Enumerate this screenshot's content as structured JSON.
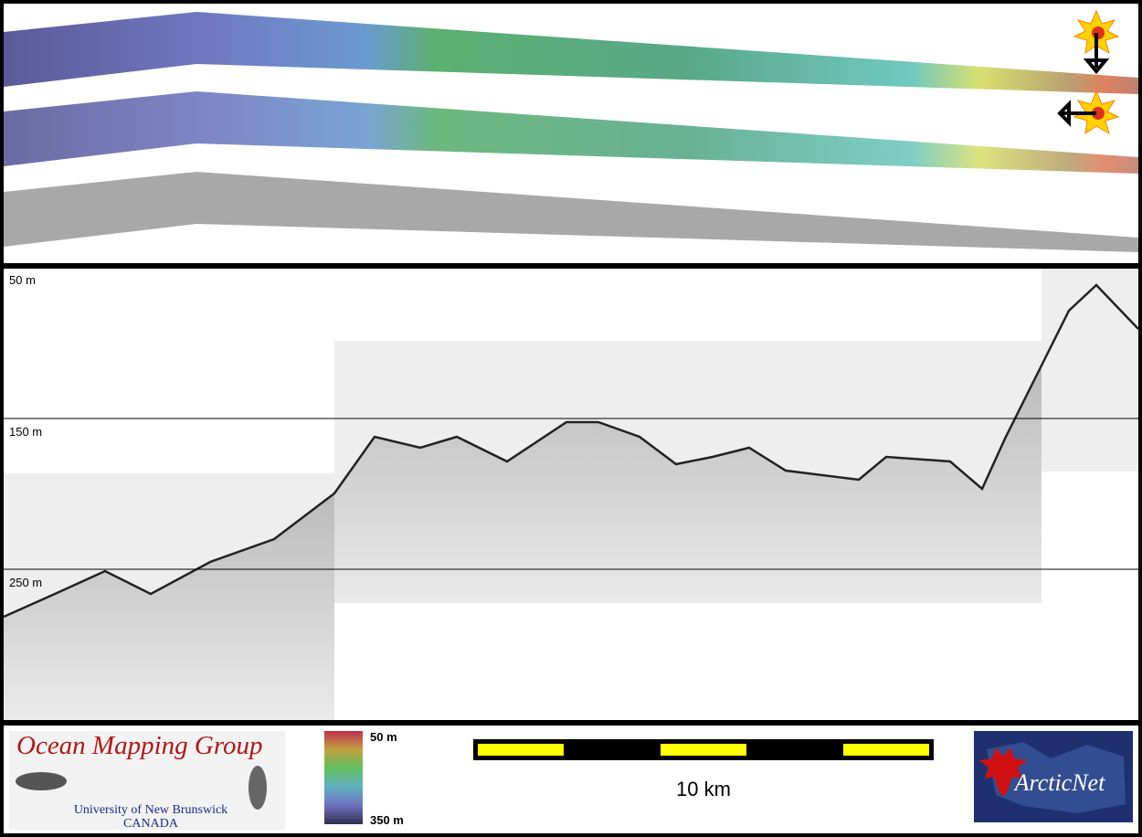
{
  "profile": {
    "depth_labels": [
      "50 m",
      "150 m",
      "250 m"
    ]
  },
  "legend": {
    "depth_scale": {
      "top": "50 m",
      "bottom": "350 m"
    },
    "scale_bar": {
      "label": "10 km"
    }
  },
  "logos": {
    "omg": {
      "title": "Ocean Mapping Group",
      "institution": "University of New Brunswick",
      "country": "CANADA"
    },
    "arcticnet": {
      "name": "ArcticNet"
    }
  }
}
